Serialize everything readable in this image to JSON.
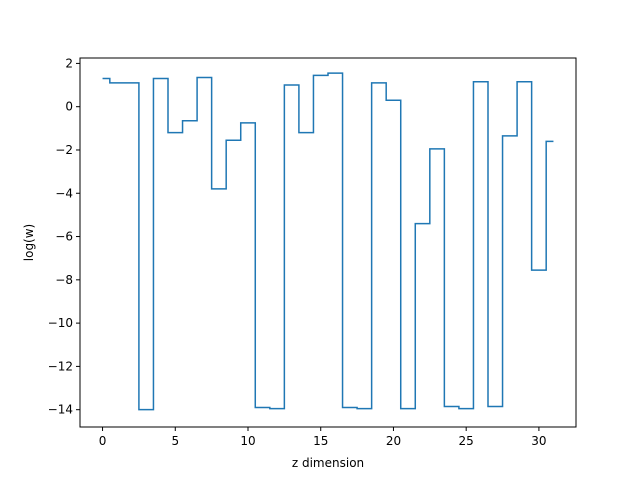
{
  "chart_data": {
    "type": "line",
    "drawstyle": "steps-mid",
    "title": "",
    "xlabel": "z dimension",
    "ylabel": "log(w)",
    "xlim": [
      -1.55,
      32.55
    ],
    "ylim": [
      -14.8,
      2.25
    ],
    "xticks": [
      0,
      5,
      10,
      15,
      20,
      25,
      30
    ],
    "yticks": [
      2,
      0,
      -2,
      -4,
      -6,
      -8,
      -10,
      -12,
      -14
    ],
    "xtick_labels": [
      "0",
      "5",
      "10",
      "15",
      "20",
      "25",
      "30"
    ],
    "ytick_labels": [
      "2",
      "0",
      "−2",
      "−4",
      "−6",
      "−8",
      "−10",
      "−12",
      "−14"
    ],
    "grid": false,
    "legend": false,
    "series": [
      {
        "color": "#1f77b4",
        "x": [
          0,
          1,
          2,
          3,
          4,
          5,
          6,
          7,
          8,
          9,
          10,
          11,
          12,
          13,
          14,
          15,
          16,
          17,
          18,
          19,
          20,
          21,
          22,
          23,
          24,
          25,
          26,
          27,
          28,
          29,
          30,
          31
        ],
        "y": [
          1.3,
          1.1,
          1.1,
          -14.0,
          1.3,
          -1.2,
          -0.65,
          1.35,
          -3.8,
          -1.55,
          -0.75,
          -13.9,
          -13.95,
          1.0,
          -1.2,
          1.45,
          1.55,
          -13.9,
          -13.95,
          1.1,
          0.3,
          -13.95,
          -5.4,
          -1.95,
          -13.85,
          -13.95,
          1.15,
          -13.85,
          -1.35,
          1.15,
          -7.55,
          -1.6
        ]
      }
    ]
  }
}
